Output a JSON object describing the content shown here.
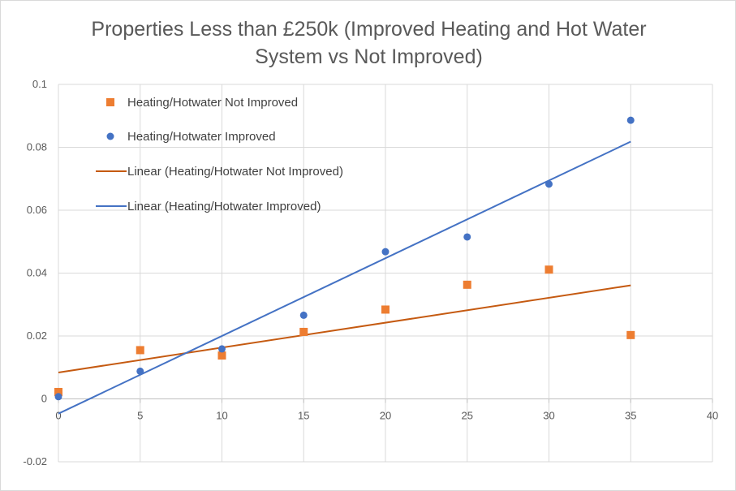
{
  "chart_data": {
    "type": "scatter",
    "title": "Properties Less than £250k (Improved Heating and Hot Water System vs Not Improved)",
    "title_lines": [
      "Properties Less than £250k (Improved Heating and Hot Water",
      "System vs Not Improved)"
    ],
    "xlim": [
      0,
      40
    ],
    "ylim": [
      -0.02,
      0.1
    ],
    "x_ticks": [
      0,
      5,
      10,
      15,
      20,
      25,
      30,
      35,
      40
    ],
    "y_ticks": [
      -0.02,
      0,
      0.02,
      0.04,
      0.06,
      0.08,
      0.1
    ],
    "y_tick_labels": [
      "-0.02",
      "0",
      "0.02",
      "0.04",
      "0.06",
      "0.08",
      "0.1"
    ],
    "grid": true,
    "legend_position": "top-left",
    "series": [
      {
        "name": "Heating/Hotwater Not Improved",
        "marker": "square",
        "color": "#ED7D31",
        "x": [
          0,
          5,
          10,
          15,
          20,
          25,
          30,
          35
        ],
        "y": [
          0.0022,
          0.0155,
          0.0138,
          0.0213,
          0.0284,
          0.0363,
          0.0411,
          0.0203
        ]
      },
      {
        "name": "Heating/Hotwater Improved",
        "marker": "circle",
        "color": "#4472C4",
        "x": [
          0,
          5,
          10,
          15,
          20,
          25,
          30,
          35
        ],
        "y": [
          0.0007,
          0.0088,
          0.0159,
          0.0266,
          0.0468,
          0.0515,
          0.0683,
          0.0886
        ]
      }
    ],
    "trendlines": [
      {
        "name": "Linear (Heating/Hotwater Not Improved)",
        "color": "#C55A11",
        "x": [
          0,
          35
        ],
        "y": [
          0.0084,
          0.0361
        ]
      },
      {
        "name": "Linear (Heating/Hotwater Improved)",
        "color": "#4472C4",
        "x": [
          0,
          35
        ],
        "y": [
          -0.0047,
          0.0818
        ]
      }
    ]
  }
}
